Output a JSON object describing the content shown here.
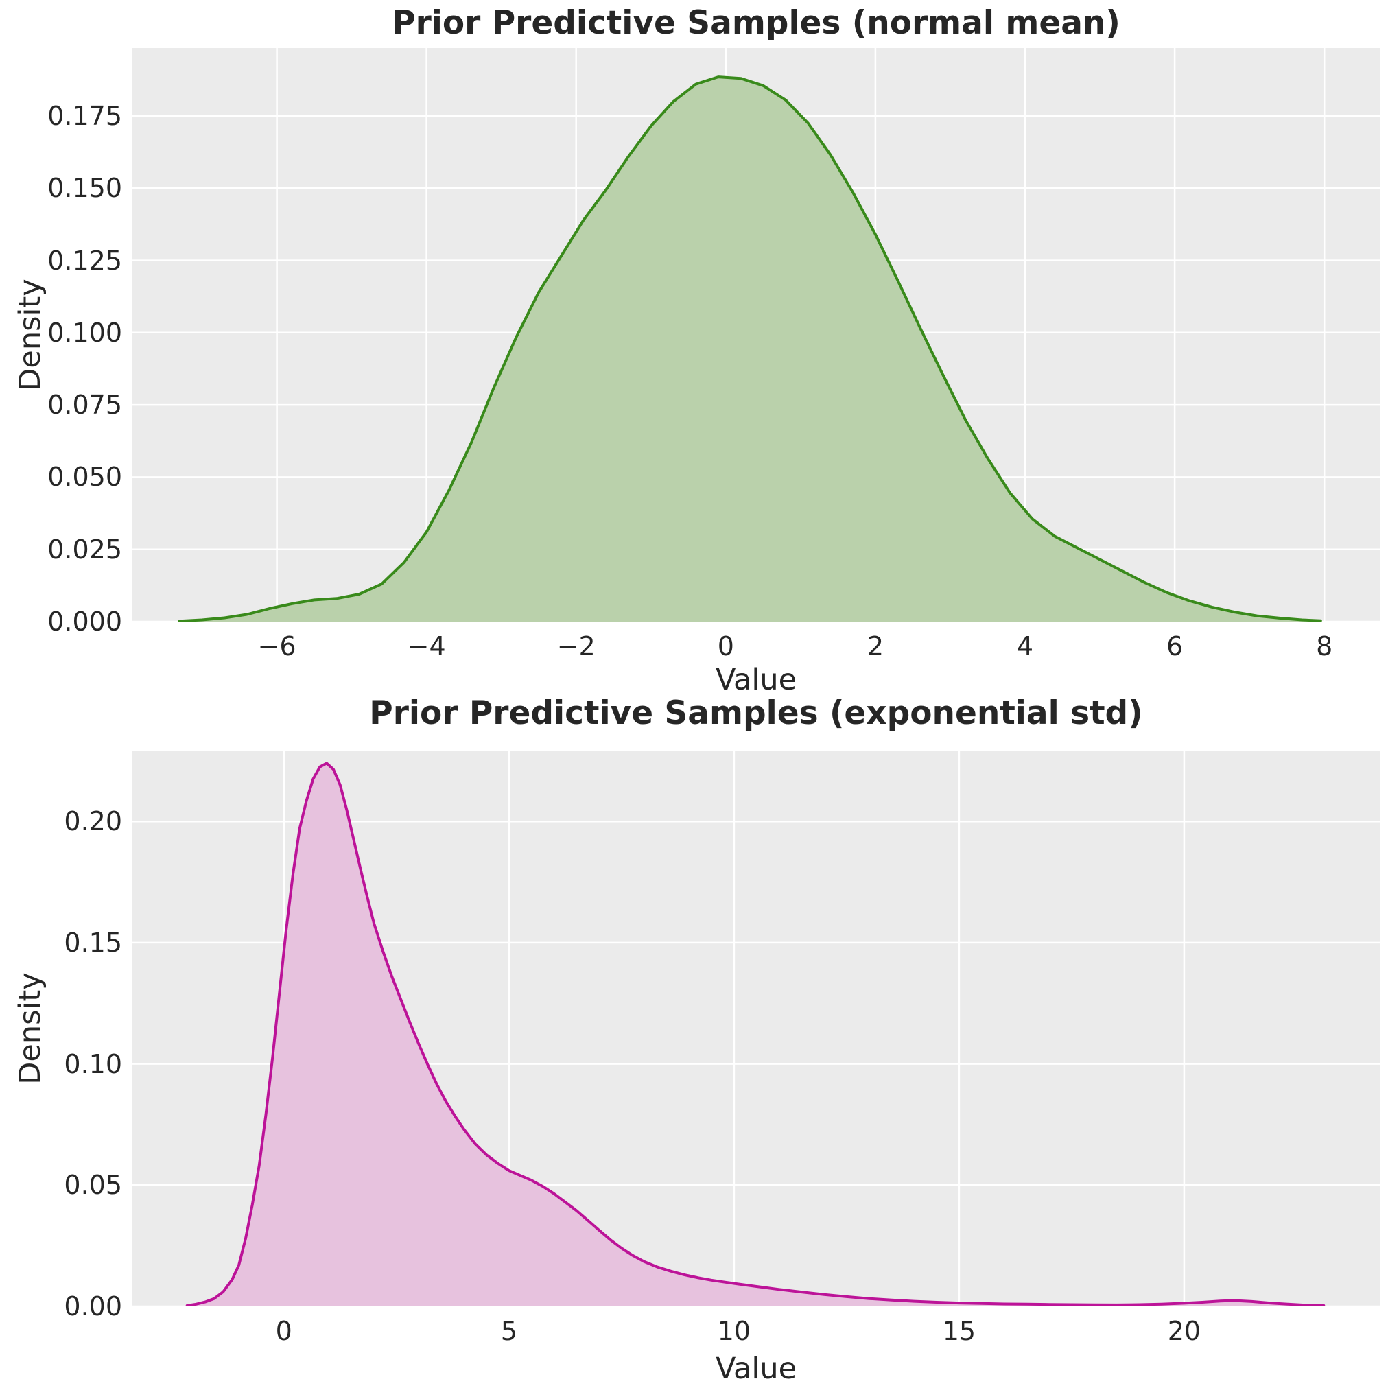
{
  "figure": {
    "background": "#ffffff",
    "axes_background": "#ebebeb",
    "grid_color": "#ffffff",
    "text_color": "#262626"
  },
  "chart_data": [
    {
      "type": "area",
      "kind": "kde-density",
      "title": "Prior Predictive Samples (normal mean)",
      "xlabel": "Value",
      "ylabel": "Density",
      "line_color": "#398a1b",
      "fill_color": "#bad1ab",
      "grid": true,
      "legend": false,
      "xlim": [
        -7.94,
        8.75
      ],
      "ylim": [
        0,
        0.1985
      ],
      "xticks": [
        -6,
        -4,
        -2,
        0,
        2,
        4,
        6,
        8
      ],
      "xtick_labels": [
        "−6",
        "−4",
        "−2",
        "0",
        "2",
        "4",
        "6",
        "8"
      ],
      "yticks": [
        0,
        0.025,
        0.05,
        0.075,
        0.1,
        0.125,
        0.15,
        0.175
      ],
      "ytick_labels": [
        "0.000",
        "0.025",
        "0.050",
        "0.075",
        "0.100",
        "0.125",
        "0.150",
        "0.175"
      ],
      "peak": {
        "x": -0.1,
        "y": 0.1885
      },
      "points": {
        "x": [
          -7.3,
          -7.0,
          -6.7,
          -6.4,
          -6.1,
          -5.8,
          -5.5,
          -5.2,
          -4.9,
          -4.6,
          -4.3,
          -4.0,
          -3.7,
          -3.4,
          -3.1,
          -2.8,
          -2.5,
          -2.2,
          -1.9,
          -1.6,
          -1.3,
          -1.0,
          -0.7,
          -0.4,
          -0.1,
          0.2,
          0.5,
          0.8,
          1.1,
          1.4,
          1.7,
          2.0,
          2.3,
          2.6,
          2.9,
          3.2,
          3.5,
          3.8,
          4.1,
          4.4,
          4.7,
          5.0,
          5.3,
          5.6,
          5.9,
          6.2,
          6.5,
          6.8,
          7.1,
          7.4,
          7.7,
          7.95
        ],
        "y": [
          0.0002,
          0.0006,
          0.0013,
          0.0025,
          0.0045,
          0.0062,
          0.0075,
          0.008,
          0.0095,
          0.013,
          0.0205,
          0.031,
          0.0455,
          0.062,
          0.081,
          0.0985,
          0.114,
          0.1265,
          0.139,
          0.1495,
          0.161,
          0.1715,
          0.18,
          0.186,
          0.1885,
          0.188,
          0.1855,
          0.1805,
          0.1725,
          0.1615,
          0.1485,
          0.134,
          0.118,
          0.1015,
          0.0855,
          0.07,
          0.0565,
          0.0445,
          0.0355,
          0.0295,
          0.0255,
          0.0215,
          0.0175,
          0.0135,
          0.01,
          0.0072,
          0.005,
          0.0033,
          0.002,
          0.0012,
          0.0006,
          0.0003
        ]
      }
    },
    {
      "type": "area",
      "kind": "kde-density",
      "title": "Prior Predictive Samples (exponential std)",
      "xlabel": "Value",
      "ylabel": "Density",
      "line_color": "#bc1398",
      "fill_color": "#e7c2de",
      "grid": true,
      "legend": false,
      "xlim": [
        -3.38,
        24.36
      ],
      "ylim": [
        0,
        0.2292
      ],
      "xticks": [
        0,
        5,
        10,
        15,
        20
      ],
      "xtick_labels": [
        "0",
        "5",
        "10",
        "15",
        "20"
      ],
      "yticks": [
        0,
        0.05,
        0.1,
        0.15,
        0.2
      ],
      "ytick_labels": [
        "0.00",
        "0.05",
        "0.10",
        "0.15",
        "0.20"
      ],
      "peak": {
        "x": 0.95,
        "y": 0.224
      },
      "points": {
        "x": [
          -2.15,
          -1.95,
          -1.75,
          -1.55,
          -1.35,
          -1.15,
          -1.0,
          -0.85,
          -0.7,
          -0.55,
          -0.4,
          -0.25,
          -0.1,
          0.05,
          0.2,
          0.35,
          0.5,
          0.65,
          0.8,
          0.95,
          1.1,
          1.25,
          1.4,
          1.55,
          1.7,
          1.85,
          2.0,
          2.2,
          2.4,
          2.6,
          2.8,
          3.0,
          3.2,
          3.4,
          3.6,
          3.8,
          4.0,
          4.25,
          4.5,
          4.75,
          5.0,
          5.25,
          5.5,
          5.75,
          6.0,
          6.25,
          6.5,
          6.75,
          7.0,
          7.25,
          7.5,
          7.75,
          8.0,
          8.3,
          8.6,
          8.9,
          9.2,
          9.5,
          9.8,
          10.1,
          10.5,
          11.0,
          11.5,
          12.0,
          12.5,
          13.0,
          13.5,
          14.0,
          14.5,
          15.0,
          15.5,
          16.0,
          16.5,
          17.0,
          17.5,
          18.0,
          18.5,
          19.0,
          19.5,
          20.0,
          20.4,
          20.8,
          21.1,
          21.5,
          21.9,
          22.3,
          22.7,
          23.1
        ],
        "y": [
          0.0003,
          0.0009,
          0.0018,
          0.0032,
          0.006,
          0.011,
          0.017,
          0.028,
          0.042,
          0.058,
          0.079,
          0.103,
          0.129,
          0.155,
          0.178,
          0.197,
          0.2085,
          0.2175,
          0.2225,
          0.224,
          0.2215,
          0.215,
          0.2045,
          0.1925,
          0.1805,
          0.169,
          0.158,
          0.1465,
          0.136,
          0.1265,
          0.117,
          0.108,
          0.0995,
          0.0915,
          0.0845,
          0.0785,
          0.073,
          0.067,
          0.0625,
          0.059,
          0.056,
          0.054,
          0.052,
          0.0495,
          0.0465,
          0.043,
          0.0395,
          0.0355,
          0.0315,
          0.0275,
          0.024,
          0.021,
          0.0185,
          0.0162,
          0.0145,
          0.013,
          0.0118,
          0.0108,
          0.01,
          0.0092,
          0.0082,
          0.007,
          0.0059,
          0.0049,
          0.004,
          0.0032,
          0.0026,
          0.0021,
          0.0017,
          0.0014,
          0.0012,
          0.001,
          0.0009,
          0.0008,
          0.0007,
          0.00065,
          0.0006,
          0.0007,
          0.0009,
          0.0013,
          0.0017,
          0.0022,
          0.0024,
          0.002,
          0.0014,
          0.0009,
          0.0005,
          0.0003
        ]
      }
    }
  ]
}
